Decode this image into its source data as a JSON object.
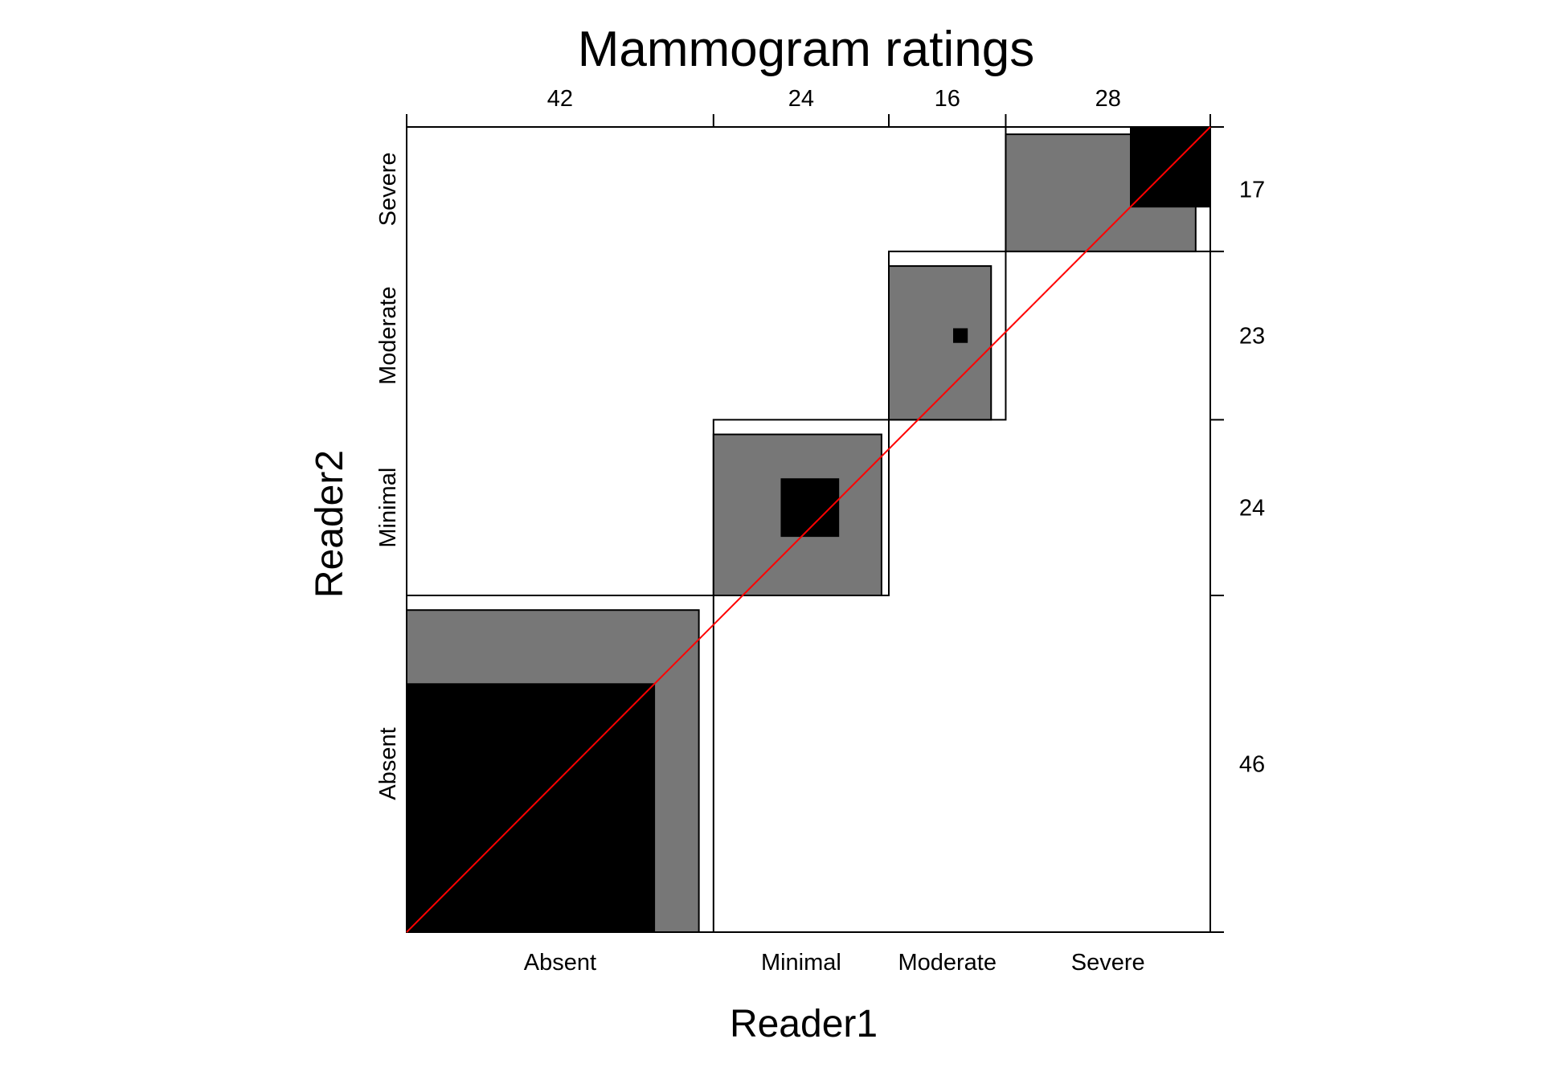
{
  "chart_data": {
    "type": "agreement",
    "title": "Mammogram ratings",
    "xlabel": "Reader1",
    "ylabel": "Reader2",
    "categories": [
      "Absent",
      "Minimal",
      "Moderate",
      "Severe"
    ],
    "row_totals_reader1": [
      42,
      24,
      16,
      28
    ],
    "col_totals_reader2": [
      46,
      24,
      23,
      17
    ],
    "exact_agreement": [
      34,
      8,
      2,
      11
    ],
    "partial_agreement_squares": [
      {
        "width": 40,
        "height": 44
      },
      {
        "width": 23,
        "height": 22
      },
      {
        "width": 14,
        "height": 21
      },
      {
        "width": 26,
        "height": 16
      }
    ],
    "grid": false,
    "colors": {
      "exact": "#000000",
      "partial": "#777777",
      "diagonal": "#ff0000",
      "outline": "#000000",
      "background": "#ffffff"
    }
  }
}
